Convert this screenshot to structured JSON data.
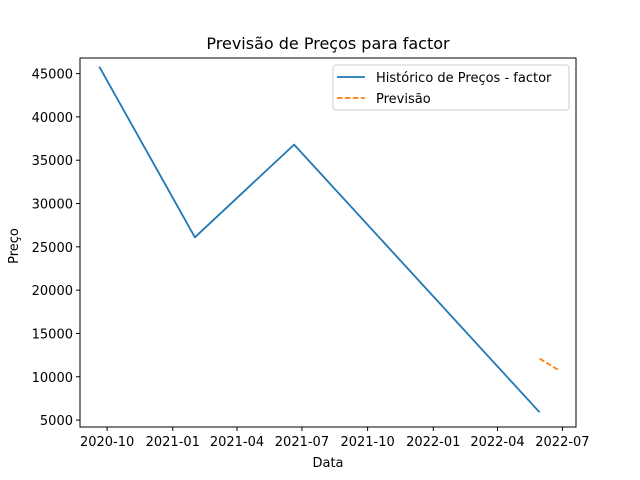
{
  "chart_data": {
    "type": "line",
    "title": "Previsão de Preços para factor",
    "xlabel": "Data",
    "ylabel": "Preço",
    "xlim": [
      "2020-08-24",
      "2022-07-20"
    ],
    "ylim": [
      4200,
      46800
    ],
    "x_ticks": [
      {
        "date": "2020-10-01",
        "label": "2020-10"
      },
      {
        "date": "2021-01-01",
        "label": "2021-01"
      },
      {
        "date": "2021-04-01",
        "label": "2021-04"
      },
      {
        "date": "2021-07-01",
        "label": "2021-07"
      },
      {
        "date": "2021-10-01",
        "label": "2021-10"
      },
      {
        "date": "2022-01-01",
        "label": "2022-01"
      },
      {
        "date": "2022-04-01",
        "label": "2022-04"
      },
      {
        "date": "2022-07-01",
        "label": "2022-07"
      }
    ],
    "y_ticks": [
      5000,
      10000,
      15000,
      20000,
      25000,
      30000,
      35000,
      40000,
      45000
    ],
    "grid": false,
    "legend_position": "top-right",
    "series": [
      {
        "name": "Histórico de Preços - factor",
        "color": "#1f77b4",
        "style": "solid",
        "x": [
          "2020-09-20",
          "2021-02-01",
          "2021-06-20",
          "2022-05-30"
        ],
        "y": [
          45800,
          26100,
          36800,
          5900
        ]
      },
      {
        "name": "Previsão",
        "color": "#ff7f0e",
        "style": "dashed",
        "x": [
          "2022-05-30",
          "2022-06-27"
        ],
        "y": [
          12100,
          10700
        ]
      }
    ]
  }
}
